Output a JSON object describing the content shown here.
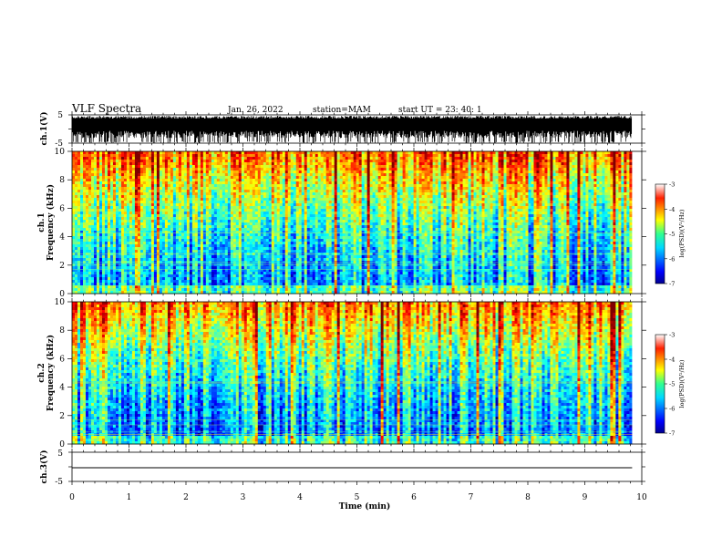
{
  "header": {
    "title": "VLF Spectra",
    "date": "Jan. 26, 2022",
    "station": "station=MAM",
    "start": "start  UT =   23: 40: 1"
  },
  "chart_data": [
    {
      "type": "line",
      "panel": "ch1-waveform",
      "ylabel": "ch.1(V)",
      "ylim": [
        -5,
        5
      ],
      "yticks": [
        "5",
        "-5"
      ]
    },
    {
      "type": "heatmap",
      "panel": "ch1-spectrogram",
      "ylabel_line1": "ch.1",
      "ylabel_line2": "Frequency (kHz)",
      "ylim": [
        0,
        10
      ],
      "yticks": [
        "0",
        "2",
        "4",
        "6",
        "8",
        "10"
      ],
      "colorbar": {
        "label": "log(PSD)(V²/Hz)",
        "range": [
          -7,
          -3
        ],
        "ticks": [
          "-3",
          "-4",
          "-5",
          "-6",
          "-7"
        ]
      }
    },
    {
      "type": "heatmap",
      "panel": "ch2-spectrogram",
      "ylabel_line1": "ch.2",
      "ylabel_line2": "Frequency (kHz)",
      "ylim": [
        0,
        10
      ],
      "yticks": [
        "0",
        "2",
        "4",
        "6",
        "8",
        "10"
      ],
      "colorbar": {
        "label": "log(PSD)(V²/Hz)",
        "range": [
          -7,
          -3
        ],
        "ticks": [
          "-3",
          "-4",
          "-5",
          "-6",
          "-7"
        ]
      }
    },
    {
      "type": "line",
      "panel": "ch3-waveform",
      "ylabel": "ch.3(V)",
      "ylim": [
        -5,
        5
      ],
      "yticks": [
        "5",
        "-5"
      ]
    }
  ],
  "xaxis": {
    "xlabel": "Time (min)",
    "xlim": [
      0,
      10
    ],
    "ticks": [
      "0",
      "1",
      "2",
      "3",
      "4",
      "5",
      "6",
      "7",
      "8",
      "9",
      "10"
    ],
    "data_end": 9.83
  }
}
